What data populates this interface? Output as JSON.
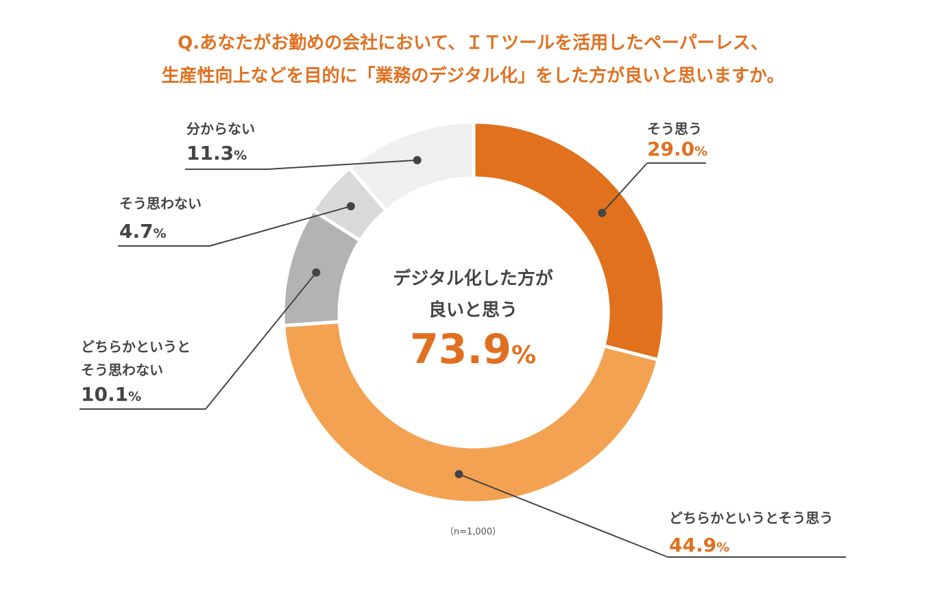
{
  "chart_data": {
    "type": "pie",
    "title": "Q.あなたがお勤めの会社において、ＩＴツールを活用したペーパーレス、生産性向上などを目的に「業務のデジタル化」をした方が良いと思いますか。",
    "title_line1": "Q.あなたがお勤めの会社において、ＩＴツールを活用したペーパーレス、",
    "title_line2": "生産性向上などを目的に「業務のデジタル化」をした方が良いと思いますか。",
    "categories": [
      "そう思う",
      "どちらかというとそう思う",
      "どちらかというとそう思わない",
      "そう思わない",
      "分からない"
    ],
    "values": [
      29.0,
      44.9,
      10.1,
      4.7,
      11.3
    ],
    "unit": "%",
    "colors": [
      "#e1711c",
      "#f3a252",
      "#b3b3b3",
      "#d9d9d9",
      "#efefef"
    ],
    "labels": {
      "so_omou": {
        "text": "そう思う",
        "value": "29.0"
      },
      "dochiraka_omou": {
        "text": "どちらかというとそう思う",
        "value": "44.9"
      },
      "dochiraka_omowanai": {
        "line1": "どちらかというと",
        "line2": "そう思わない",
        "value": "10.1"
      },
      "so_omowanai": {
        "text": "そう思わない",
        "value": "4.7"
      },
      "wakaranai": {
        "text": "分からない",
        "value": "11.3"
      }
    },
    "center": {
      "line1": "デジタル化した方が",
      "line2": "良いと思う",
      "value": "73.9",
      "unit": "%"
    },
    "note": "（n=1,000）"
  }
}
